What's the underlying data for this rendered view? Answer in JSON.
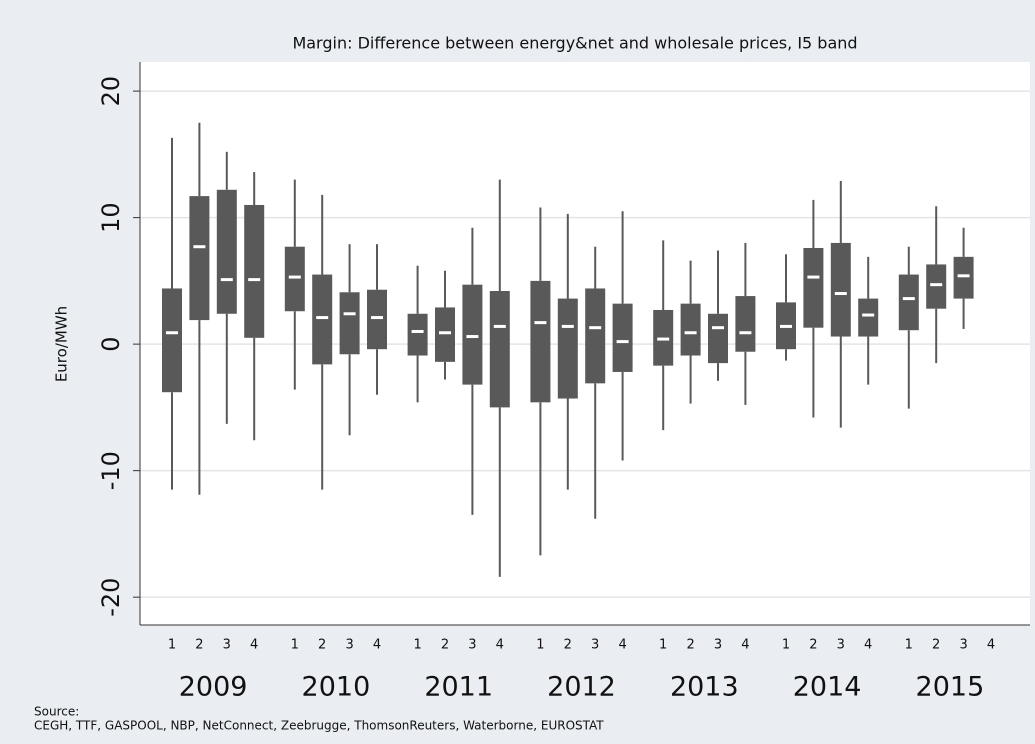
{
  "chart_data": {
    "type": "box",
    "title": "Margin: Difference between energy&net and wholesale prices, I5 band",
    "y_label": "Euro/MWh",
    "categories": [
      "1",
      "2",
      "3",
      "4",
      "1",
      "2",
      "3",
      "4",
      "1",
      "2",
      "3",
      "4",
      "1",
      "2",
      "3",
      "4",
      "1",
      "2",
      "3",
      "4",
      "1",
      "2",
      "3",
      "4",
      "1",
      "2",
      "3",
      "4"
    ],
    "groups": [
      "2009",
      "2010",
      "2011",
      "2012",
      "2013",
      "2014",
      "2015"
    ],
    "min": [
      -11.5,
      -11.9,
      -6.3,
      -7.6,
      -3.6,
      -11.5,
      -7.2,
      -4.0,
      -4.6,
      -2.8,
      -13.5,
      -18.4,
      -16.7,
      -11.5,
      -13.8,
      -9.2,
      -6.8,
      -4.7,
      -2.9,
      -4.8,
      -1.3,
      -5.8,
      -6.6,
      -3.2,
      -5.1,
      -1.5,
      1.2,
      null
    ],
    "q1": [
      -3.8,
      1.9,
      2.4,
      0.5,
      2.6,
      -1.6,
      -0.8,
      -0.4,
      -0.9,
      -1.4,
      -3.2,
      -5.0,
      -4.6,
      -4.3,
      -3.1,
      -2.2,
      -1.7,
      -0.9,
      -1.5,
      -0.6,
      -0.4,
      1.3,
      0.6,
      0.6,
      1.1,
      2.8,
      3.6,
      null
    ],
    "median": [
      0.9,
      7.7,
      5.1,
      5.1,
      5.3,
      2.1,
      2.4,
      2.1,
      1.0,
      0.9,
      0.6,
      1.4,
      1.7,
      1.4,
      1.3,
      0.2,
      0.4,
      0.9,
      1.3,
      0.9,
      1.4,
      5.3,
      4.0,
      2.3,
      3.6,
      4.7,
      5.4,
      null
    ],
    "q3": [
      4.4,
      11.7,
      12.2,
      11.0,
      7.7,
      5.5,
      4.1,
      4.3,
      2.4,
      2.9,
      4.7,
      4.2,
      5.0,
      3.6,
      4.4,
      3.2,
      2.7,
      3.2,
      2.4,
      3.8,
      3.3,
      7.6,
      8.0,
      3.6,
      5.5,
      6.3,
      6.9,
      null
    ],
    "max": [
      16.3,
      17.5,
      15.2,
      13.6,
      13.0,
      11.8,
      7.9,
      7.9,
      6.2,
      5.8,
      9.2,
      13.0,
      10.8,
      10.3,
      7.7,
      10.5,
      8.2,
      6.6,
      7.4,
      8.0,
      7.1,
      11.4,
      12.9,
      6.9,
      7.7,
      10.9,
      9.2,
      null
    ],
    "color": "#595959",
    "ylim": [
      -22.2,
      22.3
    ],
    "yticks": [
      -20,
      -10,
      0,
      10,
      20
    ],
    "grid": true,
    "source": {
      "label": "Source:",
      "text": "CEGH, TTF, GASPOOL, NBP, NetConnect, Zeebrugge, ThomsonReuters, Waterborne, EUROSTAT"
    }
  }
}
